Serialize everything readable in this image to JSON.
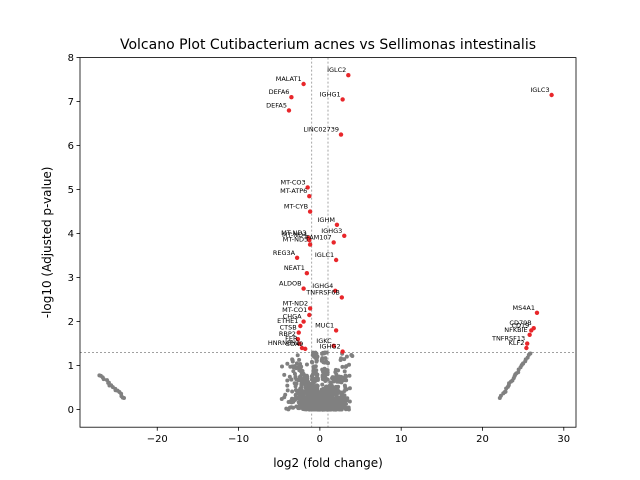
{
  "chart_data": {
    "type": "scatter",
    "title": "Volcano Plot Cutibacterium acnes vs Sellimonas intestinalis",
    "xlabel": "log2 (fold change)",
    "ylabel": "-log10 (Adjusted p-value)",
    "xlim": [
      -29.5,
      31.5
    ],
    "ylim": [
      -0.4,
      8.0
    ],
    "xticks": [
      -20,
      -10,
      0,
      10,
      20,
      30
    ],
    "yticks": [
      0,
      1,
      2,
      3,
      4,
      5,
      6,
      7,
      8
    ],
    "grid": false,
    "legend": "none",
    "colors": {
      "significant": "#e8262a",
      "nonsignificant": "#808080",
      "threshold_line": "#808080"
    },
    "thresholds": {
      "fold_change_left": -1,
      "fold_change_right": 1,
      "pvalue_line": 1.3
    },
    "significant_points": [
      {
        "label": "IGLC2",
        "x": 3.5,
        "y": 7.6
      },
      {
        "label": "MALAT1",
        "x": -2.0,
        "y": 7.4
      },
      {
        "label": "DEFA6",
        "x": -3.5,
        "y": 7.1
      },
      {
        "label": "IGHG1",
        "x": 2.8,
        "y": 7.05
      },
      {
        "label": "DEFA5",
        "x": -3.8,
        "y": 6.8
      },
      {
        "label": "IGLC3",
        "x": 28.5,
        "y": 7.15
      },
      {
        "label": "LINC02739",
        "x": 2.6,
        "y": 6.25
      },
      {
        "label": "MT-CO3",
        "x": -1.5,
        "y": 5.05
      },
      {
        "label": "MT-ATP6",
        "x": -1.3,
        "y": 4.85
      },
      {
        "label": "MT-CYB",
        "x": -1.2,
        "y": 4.5
      },
      {
        "label": "IGHM",
        "x": 2.1,
        "y": 4.2
      },
      {
        "label": "IGHG3",
        "x": 3.0,
        "y": 3.95
      },
      {
        "label": "MT-ND3",
        "x": -1.4,
        "y": 3.9
      },
      {
        "label": "MT-ND4",
        "x": -1.3,
        "y": 3.85
      },
      {
        "label": "FAM107",
        "x": 1.7,
        "y": 3.8
      },
      {
        "label": "MT-ND5",
        "x": -1.2,
        "y": 3.75
      },
      {
        "label": "REG3A",
        "x": -2.8,
        "y": 3.45
      },
      {
        "label": "IGLC1",
        "x": 2.0,
        "y": 3.4
      },
      {
        "label": "NEAT1",
        "x": -1.6,
        "y": 3.1
      },
      {
        "label": "ALDOB",
        "x": -2.0,
        "y": 2.75
      },
      {
        "label": "IGHG4",
        "x": 1.9,
        "y": 2.7
      },
      {
        "label": "TNFRSF6B",
        "x": 2.7,
        "y": 2.55
      },
      {
        "label": "MT-ND2",
        "x": -1.2,
        "y": 2.3
      },
      {
        "label": "MT-CO1",
        "x": -1.3,
        "y": 2.15
      },
      {
        "label": "CHGA",
        "x": -2.0,
        "y": 2.0
      },
      {
        "label": "ETHE1",
        "x": -2.4,
        "y": 1.9
      },
      {
        "label": "MUC1",
        "x": 2.0,
        "y": 1.8
      },
      {
        "label": "CTSB",
        "x": -2.6,
        "y": 1.75
      },
      {
        "label": "RBP2",
        "x": -2.7,
        "y": 1.6
      },
      {
        "label": "FER",
        "x": -2.5,
        "y": 1.5
      },
      {
        "label": "IGKC",
        "x": 1.7,
        "y": 1.45
      },
      {
        "label": "HNRNPH1",
        "x": -2.2,
        "y": 1.4
      },
      {
        "label": "SOX9",
        "x": -1.8,
        "y": 1.38
      },
      {
        "label": "IGHG2",
        "x": 2.8,
        "y": 1.32
      },
      {
        "label": "MS4A1",
        "x": 26.7,
        "y": 2.2
      },
      {
        "label": "CD79B",
        "x": 26.3,
        "y": 1.85
      },
      {
        "label": "CD19",
        "x": 26.0,
        "y": 1.8
      },
      {
        "label": "NFKBIE",
        "x": 25.8,
        "y": 1.7
      },
      {
        "label": "TNFRSF13",
        "x": 25.5,
        "y": 1.5
      },
      {
        "label": "KLF2",
        "x": 25.4,
        "y": 1.4
      }
    ]
  }
}
